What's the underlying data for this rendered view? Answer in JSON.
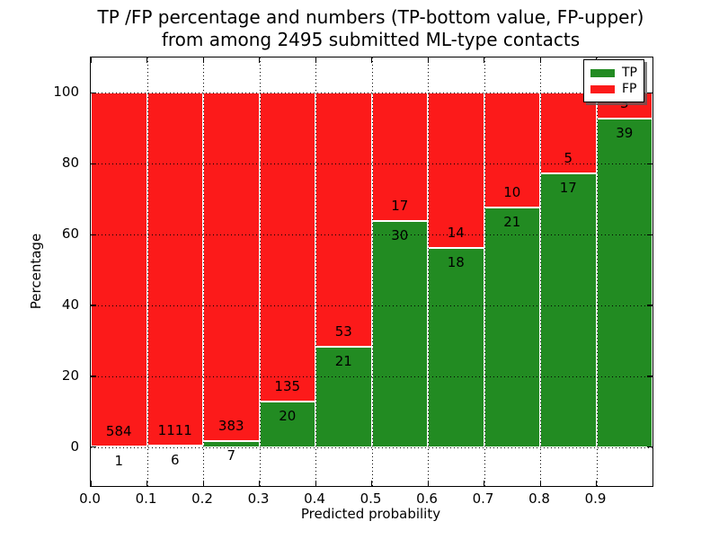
{
  "figure": {
    "title_line1": "TP /FP percentage and numbers (TP-bottom value, FP-upper)",
    "title_line2": "from among 2495 submitted ML-type contacts"
  },
  "chart_data": {
    "type": "bar",
    "stacked": true,
    "title": "TP /FP percentage and numbers (TP-bottom value, FP-upper) from among 2495 submitted ML-type contacts",
    "xlabel": "Predicted probability",
    "ylabel": "Percentage",
    "total_contacts": 2495,
    "grid": true,
    "legend_position": "upper right",
    "xlim": [
      0.0,
      1.0
    ],
    "ylim": [
      -11,
      110
    ],
    "yticks": [
      0,
      20,
      40,
      60,
      80,
      100
    ],
    "xticks": [
      0.0,
      0.1,
      0.2,
      0.3,
      0.4,
      0.5,
      0.6,
      0.7,
      0.8,
      0.9
    ],
    "xtick_labels": [
      "0.0",
      "0.1",
      "0.2",
      "0.3",
      "0.4",
      "0.5",
      "0.6",
      "0.7",
      "0.8",
      "0.9"
    ],
    "bin_width": 0.1,
    "colors": {
      "tp": "#228b22",
      "fp": "#fc1a1a",
      "edge": "#ffffff"
    },
    "legend": [
      {
        "name": "TP",
        "color": "#228b22"
      },
      {
        "name": "FP",
        "color": "#fc1a1a"
      }
    ],
    "bins": [
      {
        "x_start": 0.0,
        "x_end": 0.1,
        "tp": 1,
        "fp": 584,
        "tp_pct": 0.2
      },
      {
        "x_start": 0.1,
        "x_end": 0.2,
        "tp": 6,
        "fp": 1111,
        "tp_pct": 0.5
      },
      {
        "x_start": 0.2,
        "x_end": 0.3,
        "tp": 7,
        "fp": 383,
        "tp_pct": 1.8
      },
      {
        "x_start": 0.3,
        "x_end": 0.4,
        "tp": 20,
        "fp": 135,
        "tp_pct": 12.9
      },
      {
        "x_start": 0.4,
        "x_end": 0.5,
        "tp": 21,
        "fp": 53,
        "tp_pct": 28.4
      },
      {
        "x_start": 0.5,
        "x_end": 0.6,
        "tp": 30,
        "fp": 17,
        "tp_pct": 63.8
      },
      {
        "x_start": 0.6,
        "x_end": 0.7,
        "tp": 18,
        "fp": 14,
        "tp_pct": 56.2
      },
      {
        "x_start": 0.7,
        "x_end": 0.8,
        "tp": 21,
        "fp": 10,
        "tp_pct": 67.7
      },
      {
        "x_start": 0.8,
        "x_end": 0.9,
        "tp": 17,
        "fp": 5,
        "tp_pct": 77.3
      },
      {
        "x_start": 0.9,
        "x_end": 1.0,
        "tp": 39,
        "fp": 3,
        "tp_pct": 92.9
      }
    ]
  }
}
